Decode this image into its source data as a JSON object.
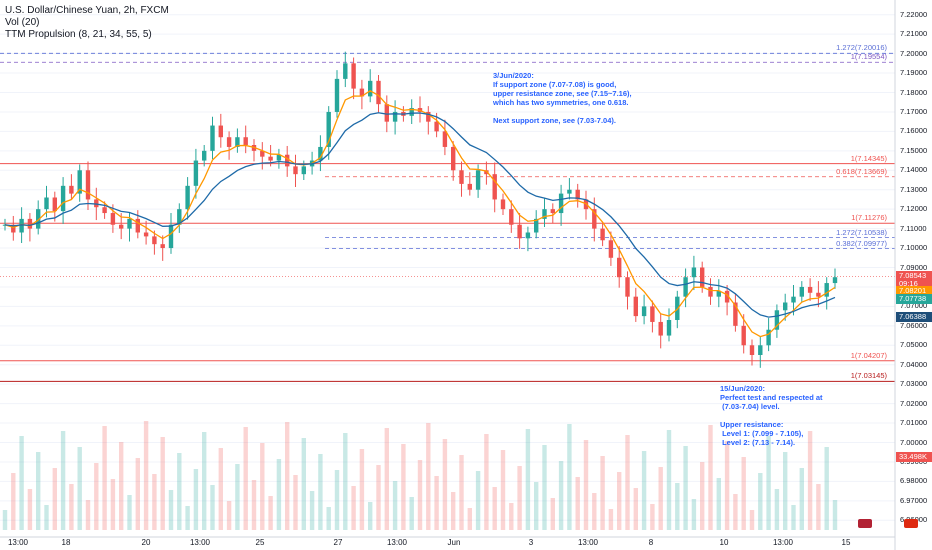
{
  "legend": {
    "symbol": "U.S. Dollar/Chinese Yuan, 2h, FXCM",
    "volume": "Vol (20)",
    "indicator": "TTM Propulsion (8, 21, 34, 55, 5)"
  },
  "annotations": {
    "top": "3/Jun/2020:\nIf support zone (7.07-7.08) is good,\nupper resistance zone, see (7.15~7.16),\nwhich has two symmetries, one 0.618.\n\nNext support zone, see (7.03-7.04).",
    "bottom": "15/Jun/2020:\nPerfect test and respected at\n (7.03-7.04) level.\n\nUpper resistance:\n Level 1: (7.099 - 7.105),\n Level 2: (7.13 - 7.14)."
  },
  "levels": [
    {
      "label": "1.272(7.20016)",
      "price": 7.20016,
      "color": "#5b6fd6",
      "style": "dashed"
    },
    {
      "label": "1(7.19554)",
      "price": 7.19554,
      "color": "#7e57c2",
      "style": "dashed"
    },
    {
      "label": "1(7.14345)",
      "price": 7.14345,
      "color": "#ef5350",
      "style": "solid"
    },
    {
      "label": "0.618(7.13669)",
      "price": 7.13669,
      "color": "#ef5350",
      "style": "dashed"
    },
    {
      "label": "1(7.11276)",
      "price": 7.11276,
      "color": "#ef5350",
      "style": "solid"
    },
    {
      "label": "1.272(7.10538)",
      "price": 7.10538,
      "color": "#5b6fd6",
      "style": "dashed"
    },
    {
      "label": "0.382(7.09977)",
      "price": 7.09977,
      "color": "#5b6fd6",
      "style": "dashed"
    },
    {
      "label": "1(7.04207)",
      "price": 7.04207,
      "color": "#ef5350",
      "style": "solid"
    },
    {
      "label": "1(7.03145)",
      "price": 7.03145,
      "color": "#b71c1c",
      "style": "solid"
    }
  ],
  "price_axis": {
    "min": 6.955,
    "max": 7.225,
    "ticks": [
      "7.22000",
      "7.21000",
      "7.20000",
      "7.19000",
      "7.18000",
      "7.17000",
      "7.16000",
      "7.15000",
      "7.14000",
      "7.13000",
      "7.12000",
      "7.11000",
      "7.10000",
      "7.09000",
      "7.08000",
      "7.07000",
      "7.06000",
      "7.05000",
      "7.04000",
      "7.03000",
      "7.02000",
      "7.01000",
      "7.00000",
      "6.99000",
      "6.98000",
      "6.97000",
      "6.96000"
    ]
  },
  "price_tags": [
    {
      "label": "7.08543",
      "price": 7.08543,
      "color": "#ef5350"
    },
    {
      "label": "09:16",
      "price": 7.0815,
      "color": "#ef5350"
    },
    {
      "label": "7.08201",
      "price": 7.0778,
      "color": "#ff9800"
    },
    {
      "label": "7.07738",
      "price": 7.0738,
      "color": "#26a69a"
    },
    {
      "label": "7.06388",
      "price": 7.0645,
      "color": "#1e4e79"
    },
    {
      "label": "33.498K",
      "price": 6.9925,
      "color": "#ef5350"
    }
  ],
  "time_axis": [
    "13:00",
    "18",
    "20",
    "13:00",
    "25",
    "27",
    "13:00",
    "Jun",
    "3",
    "13:00",
    "8",
    "10",
    "13:00",
    "15"
  ],
  "colors": {
    "up": "#26a69a",
    "down": "#ef5350",
    "ema_fast": "#ff9800",
    "ema_slow": "#1e6aa8",
    "annotation": "#2962ff"
  },
  "chart_data": {
    "type": "candlestick",
    "ylim": [
      6.955,
      7.225
    ],
    "close_path": [
      7.112,
      7.108,
      7.115,
      7.11,
      7.12,
      7.126,
      7.119,
      7.132,
      7.128,
      7.14,
      7.125,
      7.121,
      7.118,
      7.112,
      7.11,
      7.115,
      7.108,
      7.106,
      7.102,
      7.1,
      7.112,
      7.12,
      7.132,
      7.145,
      7.15,
      7.163,
      7.157,
      7.152,
      7.157,
      7.153,
      7.15,
      7.147,
      7.145,
      7.148,
      7.142,
      7.138,
      7.142,
      7.145,
      7.152,
      7.17,
      7.187,
      7.195,
      7.182,
      7.178,
      7.186,
      7.174,
      7.165,
      7.17,
      7.168,
      7.172,
      7.17,
      7.165,
      7.16,
      7.152,
      7.14,
      7.133,
      7.13,
      7.14,
      7.138,
      7.125,
      7.12,
      7.112,
      7.105,
      7.108,
      7.115,
      7.12,
      7.118,
      7.128,
      7.13,
      7.125,
      7.12,
      7.11,
      7.104,
      7.095,
      7.085,
      7.075,
      7.065,
      7.07,
      7.062,
      7.055,
      7.063,
      7.075,
      7.085,
      7.09,
      7.08,
      7.075,
      7.078,
      7.072,
      7.06,
      7.05,
      7.045,
      7.05,
      7.058,
      7.068,
      7.072,
      7.075,
      7.08,
      7.077,
      7.075,
      7.082,
      7.085
    ]
  }
}
